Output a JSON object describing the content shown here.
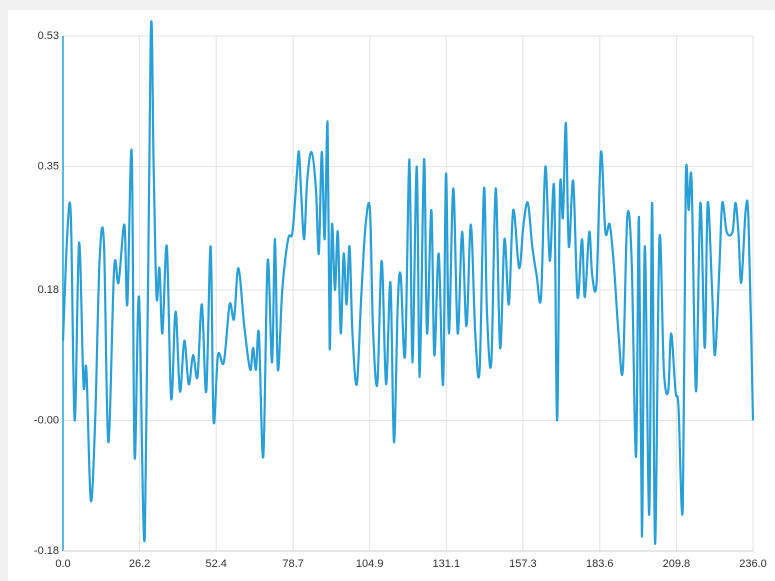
{
  "chart_data": {
    "type": "line",
    "color": "#2a9fd6",
    "grid": true,
    "xlim": [
      0,
      236
    ],
    "ylim": [
      -0.18,
      0.53
    ],
    "xticks": [
      {
        "value": 0,
        "label": "0.0"
      },
      26.2,
      52.4,
      78.7,
      104.9,
      131.1,
      157.3,
      183.6,
      209.8,
      {
        "value": 236,
        "label": "236.0"
      }
    ],
    "yticks": [
      -0.18,
      {
        "value": 0,
        "label": "-0.00"
      },
      0.18,
      0.35,
      0.53
    ],
    "x": [
      0,
      1.5,
      2.7,
      4,
      5.5,
      7,
      8,
      9.5,
      11,
      12.5,
      14,
      15.5,
      17.5,
      19,
      21,
      22,
      23.5,
      24.5,
      26,
      28,
      30,
      31,
      32,
      33,
      34,
      35.5,
      37,
      38.5,
      40,
      41.5,
      43,
      44.5,
      46,
      47.5,
      49,
      50.5,
      51.5,
      53,
      55,
      57,
      58.5,
      60,
      62,
      64,
      65,
      66,
      67,
      68.5,
      70,
      71.5,
      72.5,
      73.5,
      75,
      77,
      78.5,
      80,
      80.7,
      81.5,
      82.5,
      83.5,
      85,
      86.5,
      87.5,
      88.5,
      89.5,
      90.5,
      91.2,
      92,
      93,
      94,
      95,
      96,
      97,
      98,
      99,
      100.5,
      102,
      103.5,
      105,
      106,
      107.5,
      109,
      110.5,
      112,
      113.2,
      114.5,
      115.5,
      117,
      118.5,
      119.5,
      121,
      122,
      123.5,
      124.5,
      126,
      127,
      128.5,
      130,
      131,
      132,
      133.5,
      135,
      136.5,
      138,
      139.5,
      141,
      142.5,
      144,
      145,
      146.5,
      148,
      149.5,
      151,
      152.5,
      154,
      156,
      157.5,
      159,
      160.5,
      162,
      163.5,
      165,
      166.5,
      168,
      169,
      170,
      171,
      172,
      173,
      174.5,
      176,
      177.5,
      178.5,
      180,
      181,
      182.5,
      184,
      185.5,
      187,
      188.5,
      190,
      191.5,
      193,
      194.5,
      196,
      197,
      198,
      199,
      200.5,
      201.5,
      202.5,
      204,
      205.5,
      207,
      208,
      209.5,
      210.5,
      212,
      213,
      214,
      215,
      216.5,
      218,
      219.5,
      220.5,
      222,
      223,
      224.5,
      225.5,
      227,
      229,
      230,
      231,
      232,
      233.5,
      234.5,
      236
    ],
    "values": [
      0.11,
      0.26,
      0.28,
      0.0,
      0.245,
      0.05,
      0.07,
      -0.11,
      0.0,
      0.22,
      0.245,
      -0.03,
      0.21,
      0.19,
      0.27,
      0.16,
      0.37,
      -0.05,
      0.17,
      -0.16,
      0.53,
      0.35,
      0.17,
      0.21,
      0.12,
      0.24,
      0.03,
      0.15,
      0.04,
      0.11,
      0.05,
      0.09,
      0.06,
      0.16,
      0.04,
      0.24,
      0.0,
      0.09,
      0.08,
      0.16,
      0.14,
      0.21,
      0.13,
      0.07,
      0.1,
      0.07,
      0.12,
      -0.05,
      0.22,
      0.08,
      0.25,
      0.07,
      0.18,
      0.25,
      0.26,
      0.34,
      0.37,
      0.31,
      0.25,
      0.33,
      0.37,
      0.32,
      0.23,
      0.37,
      0.25,
      0.41,
      0.1,
      0.27,
      0.18,
      0.26,
      0.12,
      0.23,
      0.16,
      0.24,
      0.12,
      0.05,
      0.17,
      0.27,
      0.29,
      0.13,
      0.05,
      0.22,
      0.05,
      0.19,
      -0.03,
      0.16,
      0.2,
      0.09,
      0.36,
      0.08,
      0.35,
      0.06,
      0.36,
      0.12,
      0.29,
      0.09,
      0.23,
      0.05,
      0.34,
      0.12,
      0.32,
      0.12,
      0.26,
      0.13,
      0.27,
      0.12,
      0.07,
      0.32,
      0.15,
      0.08,
      0.32,
      0.1,
      0.25,
      0.16,
      0.29,
      0.21,
      0.27,
      0.3,
      0.24,
      0.2,
      0.17,
      0.35,
      0.22,
      0.32,
      0.0,
      0.32,
      0.28,
      0.41,
      0.24,
      0.33,
      0.17,
      0.25,
      0.17,
      0.26,
      0.2,
      0.19,
      0.37,
      0.26,
      0.27,
      0.21,
      0.12,
      0.07,
      0.28,
      0.22,
      -0.05,
      0.28,
      -0.16,
      0.24,
      -0.13,
      0.3,
      -0.17,
      0.25,
      0.07,
      0.04,
      0.12,
      0.04,
      0.02,
      -0.12,
      0.33,
      0.29,
      0.33,
      0.04,
      0.3,
      0.1,
      0.3,
      0.18,
      0.09,
      0.21,
      0.3,
      0.26,
      0.26,
      0.3,
      0.26,
      0.19,
      0.29,
      0.27,
      0.0
    ]
  }
}
